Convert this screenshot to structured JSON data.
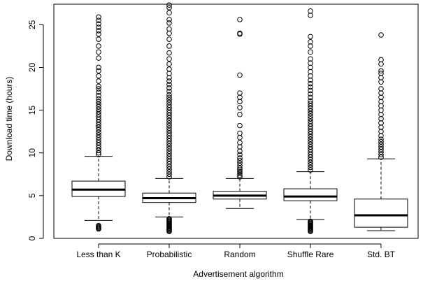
{
  "chart_data": {
    "type": "boxplot",
    "xlabel": "Advertisement algorithm",
    "ylabel": "Download time (hours)",
    "ylim": [
      0,
      27.4
    ],
    "yticks": [
      0,
      5,
      10,
      15,
      20,
      25
    ],
    "yticks_labels": [
      "0",
      "5",
      "10",
      "15",
      "20",
      "25"
    ],
    "grid": false,
    "categories": [
      "Less than K",
      "Probabilistic",
      "Random",
      "Shuffle Rare",
      "Std. BT"
    ],
    "boxes": [
      {
        "category": "Less than K",
        "whisker_low": 2.1,
        "q1": 4.9,
        "median": 5.7,
        "q3": 6.7,
        "whisker_high": 9.6,
        "outliers": [
          1.1,
          1.2,
          1.3,
          1.4,
          1.5,
          9.8,
          10.0,
          10.3,
          10.6,
          10.9,
          11.2,
          11.5,
          11.8,
          12.1,
          12.4,
          12.7,
          13.0,
          13.3,
          13.6,
          13.9,
          14.2,
          14.5,
          14.8,
          15.1,
          15.4,
          15.7,
          16.0,
          16.3,
          16.7,
          17.1,
          17.5,
          17.8,
          18.4,
          19.0,
          19.6,
          20.0,
          21.1,
          21.8,
          22.5,
          23.3,
          23.9,
          24.3,
          24.7,
          25.1,
          25.5,
          25.9
        ]
      },
      {
        "category": "Probabilistic",
        "whisker_low": 2.5,
        "q1": 4.2,
        "median": 4.7,
        "q3": 5.3,
        "whisker_high": 7.0,
        "outliers": [
          0.8,
          0.9,
          1.0,
          1.1,
          1.2,
          1.3,
          1.4,
          1.5,
          1.6,
          1.7,
          1.8,
          1.9,
          2.0,
          2.1,
          2.2,
          2.3,
          7.2,
          7.5,
          7.8,
          8.1,
          8.4,
          8.7,
          9.0,
          9.3,
          9.6,
          9.9,
          10.2,
          10.5,
          10.8,
          11.1,
          11.4,
          11.7,
          12.0,
          12.3,
          12.6,
          12.9,
          13.2,
          13.5,
          13.8,
          14.1,
          14.4,
          14.7,
          15.0,
          15.3,
          15.6,
          15.9,
          16.2,
          16.5,
          16.8,
          17.2,
          17.6,
          18.0,
          18.4,
          18.8,
          19.3,
          19.8,
          20.4,
          21.0,
          21.7,
          22.5,
          23.3,
          24.0,
          24.5,
          25.2,
          25.6,
          26.4,
          27.0,
          27.3
        ]
      },
      {
        "category": "Random",
        "whisker_low": 3.5,
        "q1": 4.6,
        "median": 5.0,
        "q3": 5.5,
        "whisker_high": 7.0,
        "outliers": [
          7.2,
          7.4,
          7.6,
          7.8,
          8.0,
          8.2,
          8.5,
          8.8,
          9.1,
          9.4,
          9.8,
          10.2,
          10.7,
          11.2,
          11.8,
          12.3,
          13.2,
          14.5,
          15.3,
          16.0,
          16.5,
          17.0,
          19.1,
          23.9,
          24.0,
          25.6
        ]
      },
      {
        "category": "Shuffle Rare",
        "whisker_low": 2.2,
        "q1": 4.4,
        "median": 4.9,
        "q3": 5.8,
        "whisker_high": 7.8,
        "outliers": [
          0.8,
          0.9,
          1.0,
          1.1,
          1.2,
          1.3,
          1.4,
          1.5,
          1.6,
          1.7,
          1.8,
          1.9,
          2.0,
          8.0,
          8.3,
          8.6,
          8.9,
          9.2,
          9.5,
          9.8,
          10.1,
          10.4,
          10.7,
          11.0,
          11.3,
          11.6,
          11.9,
          12.2,
          12.5,
          12.8,
          13.1,
          13.4,
          13.7,
          14.0,
          14.3,
          14.6,
          14.9,
          15.2,
          15.5,
          15.8,
          16.1,
          16.5,
          16.9,
          17.3,
          17.7,
          18.1,
          18.5,
          19.0,
          19.5,
          20.0,
          20.5,
          21.0,
          21.8,
          22.5,
          23.0,
          23.6,
          26.1,
          26.6
        ]
      },
      {
        "category": "Std. BT",
        "whisker_low": 0.9,
        "q1": 1.3,
        "median": 2.7,
        "q3": 4.6,
        "whisker_high": 9.3,
        "outliers": [
          9.5,
          9.8,
          10.1,
          10.4,
          10.7,
          11.0,
          11.3,
          11.6,
          12.0,
          12.5,
          13.0,
          13.5,
          14.0,
          14.5,
          15.0,
          15.5,
          16.0,
          16.5,
          17.0,
          17.5,
          18.3,
          18.8,
          19.3,
          19.6,
          20.4,
          20.9,
          23.8
        ]
      }
    ]
  }
}
